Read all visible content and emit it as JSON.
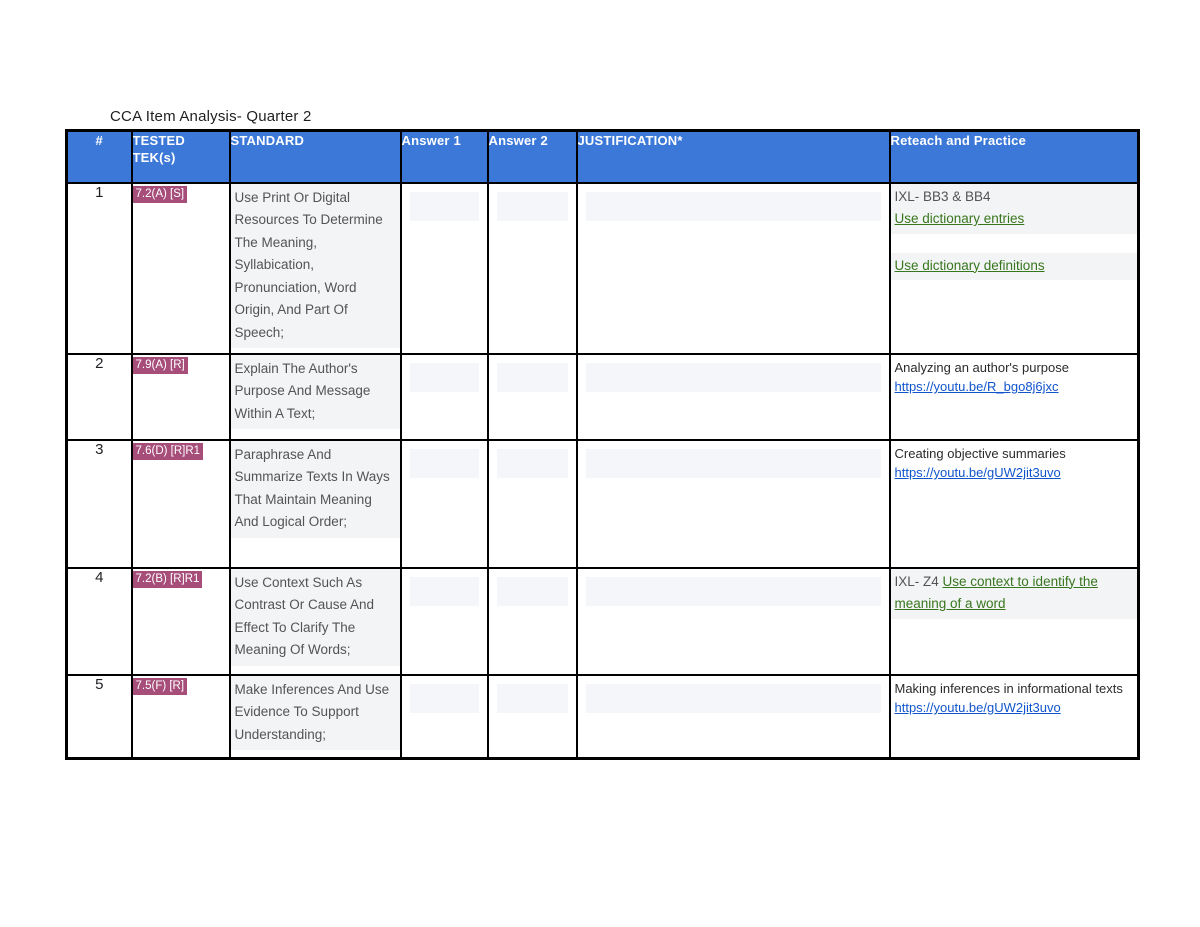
{
  "page": {
    "title": "CCA Item Analysis- Quarter 2"
  },
  "colors": {
    "header_bg": "#3c78d8",
    "header_text": "#ffffff",
    "tek_chip_bg": "#a64d79",
    "tek_chip_text": "#ffffff",
    "green_link": "#38761d",
    "blue_link": "#1155cc",
    "highlight_bg": "#f3f4f6",
    "empty_band_bg": "#f5f6f9",
    "border": "#000000"
  },
  "table": {
    "headers": [
      "#",
      "TESTED TEK(s)",
      "STANDARD",
      "Answer 1",
      "Answer 2",
      "JUSTIFICATION*",
      "Reteach and Practice"
    ],
    "rows": [
      {
        "num": "1",
        "tek": "7.2(A) [S]",
        "standard": "Use Print Or Digital Resources To Determine The Meaning, Syllabication, Pronunciation, Word Origin, And Part Of Speech;",
        "answer1": "",
        "answer2": "",
        "justification": "",
        "reteach": [
          {
            "type": "para",
            "highlight": true,
            "segments": [
              {
                "kind": "text",
                "text": "IXL- BB3 & BB4"
              },
              {
                "kind": "break"
              },
              {
                "kind": "link",
                "style": "green",
                "text": "Use dictionary entries"
              }
            ]
          },
          {
            "type": "gap"
          },
          {
            "type": "para",
            "highlight": true,
            "segments": [
              {
                "kind": "link",
                "style": "green",
                "text": "Use dictionary definitions"
              }
            ]
          }
        ]
      },
      {
        "num": "2",
        "tek": "7.9(A) [R]",
        "standard": "Explain The Author's Purpose And Message Within A Text;",
        "answer1": "",
        "answer2": "",
        "justification": "",
        "reteach": [
          {
            "type": "para",
            "highlight": false,
            "segments": [
              {
                "kind": "text",
                "text": "Analyzing an author's purpose"
              },
              {
                "kind": "break"
              },
              {
                "kind": "link",
                "style": "blue",
                "text": "https://youtu.be/R_bgo8j6jxc"
              }
            ]
          }
        ]
      },
      {
        "num": "3",
        "tek": "7.6(D) [R]R1",
        "standard": "Paraphrase And Summarize Texts In Ways That Maintain Meaning And Logical Order;",
        "answer1": "",
        "answer2": "",
        "justification": "",
        "reteach": [
          {
            "type": "para",
            "highlight": false,
            "segments": [
              {
                "kind": "text",
                "text": "Creating objective summaries"
              },
              {
                "kind": "break"
              },
              {
                "kind": "link",
                "style": "blue",
                "text": "https://youtu.be/gUW2jit3uvo"
              }
            ]
          }
        ]
      },
      {
        "num": "4",
        "tek": "7.2(B) [R]R1",
        "standard": "Use Context Such As Contrast Or Cause And Effect To Clarify The Meaning Of Words;",
        "answer1": "",
        "answer2": "",
        "justification": "",
        "reteach": [
          {
            "type": "para",
            "highlight": true,
            "segments": [
              {
                "kind": "text",
                "text": "IXL- Z4 "
              },
              {
                "kind": "link",
                "style": "green",
                "text": "Use context to identify the meaning of a word"
              }
            ]
          }
        ]
      },
      {
        "num": "5",
        "tek": "7.5(F) [R]",
        "standard": "Make Inferences And Use Evidence To Support Understanding;",
        "answer1": "",
        "answer2": "",
        "justification": "",
        "reteach": [
          {
            "type": "para",
            "highlight": false,
            "segments": [
              {
                "kind": "text",
                "text": "Making inferences in informational texts "
              },
              {
                "kind": "link",
                "style": "blue",
                "text": "https://youtu.be/gUW2jit3uvo"
              }
            ]
          }
        ]
      }
    ]
  }
}
